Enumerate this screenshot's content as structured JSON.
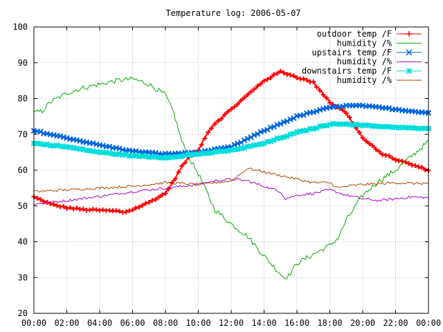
{
  "chart_data": {
    "type": "line",
    "title": "Temperature log: 2006-05-07",
    "xlabel": "",
    "ylabel": "",
    "xlim": [
      0,
      24
    ],
    "ylim": [
      20,
      100
    ],
    "grid": true,
    "legend_position": "top-right",
    "x_ticks": [
      {
        "value": 0,
        "label": "00:00"
      },
      {
        "value": 2,
        "label": "02:00"
      },
      {
        "value": 4,
        "label": "04:00"
      },
      {
        "value": 6,
        "label": "06:00"
      },
      {
        "value": 8,
        "label": "08:00"
      },
      {
        "value": 10,
        "label": "10:00"
      },
      {
        "value": 12,
        "label": "12:00"
      },
      {
        "value": 14,
        "label": "14:00"
      },
      {
        "value": 16,
        "label": "16:00"
      },
      {
        "value": 18,
        "label": "18:00"
      },
      {
        "value": 20,
        "label": "20:00"
      },
      {
        "value": 22,
        "label": "22:00"
      },
      {
        "value": 24,
        "label": "00:00"
      }
    ],
    "y_ticks": [
      {
        "value": 20,
        "label": "20"
      },
      {
        "value": 30,
        "label": "30"
      },
      {
        "value": 40,
        "label": "40"
      },
      {
        "value": 50,
        "label": "50"
      },
      {
        "value": 60,
        "label": "60"
      },
      {
        "value": 70,
        "label": "70"
      },
      {
        "value": 80,
        "label": "80"
      },
      {
        "value": 90,
        "label": "90"
      },
      {
        "value": 100,
        "label": "100"
      }
    ],
    "series": [
      {
        "name": "outdoor temp /F",
        "color": "#ff0000",
        "marker": "plus",
        "x": [
          0,
          1,
          2,
          3,
          4,
          5,
          5.5,
          6,
          7,
          8,
          8.5,
          9,
          9.5,
          10,
          10.5,
          11,
          12,
          13,
          14,
          15,
          15.5,
          16,
          17,
          18,
          19,
          20,
          21,
          22,
          23,
          24
        ],
        "y": [
          52.5,
          50.5,
          49.5,
          49,
          48.8,
          48.6,
          48.2,
          49,
          51,
          53.5,
          57,
          61,
          64,
          65.5,
          70,
          73,
          77,
          81,
          85,
          87.5,
          86.8,
          86,
          84.5,
          79,
          76,
          69,
          65,
          63,
          61.5,
          60
        ]
      },
      {
        "name": "humidity /%",
        "color": "#00aa00",
        "marker": "none",
        "x": [
          0,
          0.5,
          1,
          2,
          3,
          4,
          5,
          6,
          7,
          8,
          8.5,
          9,
          9.5,
          10,
          10.5,
          11,
          12,
          13,
          14,
          15,
          15.2,
          15.5,
          16,
          17,
          18,
          18.5,
          19,
          20,
          21,
          22,
          23,
          24
        ],
        "y": [
          76,
          76.5,
          79,
          81.5,
          83,
          84,
          85,
          85.5,
          84,
          81,
          76,
          68,
          63,
          59,
          54,
          49,
          45,
          41.5,
          36,
          31,
          30,
          30.5,
          34,
          36.5,
          39,
          41,
          46,
          53,
          57,
          60,
          64,
          68
        ]
      },
      {
        "name": "upstairs temp /F",
        "color": "#0066dd",
        "marker": "x",
        "x": [
          0,
          2,
          4,
          6,
          8,
          10,
          12,
          14,
          16,
          18,
          19,
          20,
          22,
          24
        ],
        "y": [
          71,
          69,
          67,
          65.3,
          64.5,
          65,
          66.5,
          71,
          75,
          77.5,
          78,
          78,
          77,
          76
        ]
      },
      {
        "name": "humidity /%",
        "color": "#aa00cc",
        "marker": "none",
        "x": [
          0,
          2,
          4,
          6,
          8,
          10,
          11,
          12,
          13,
          14,
          15,
          15.3,
          16,
          17,
          18,
          19,
          20,
          21,
          22,
          23,
          24
        ],
        "y": [
          50.5,
          51.5,
          52.7,
          54,
          55,
          56,
          57,
          57.5,
          57,
          55.5,
          54,
          52,
          53,
          53.5,
          54.5,
          53,
          52,
          51.5,
          52,
          52.5,
          52.3
        ]
      },
      {
        "name": "downstairs temp /F",
        "color": "#00dddd",
        "marker": "star",
        "x": [
          0,
          2,
          4,
          6,
          8,
          10,
          12,
          14,
          16,
          18,
          18.8,
          20,
          22,
          24
        ],
        "y": [
          67.5,
          66.5,
          65,
          64,
          63.5,
          64.5,
          65.5,
          67.5,
          70.5,
          72.8,
          73,
          72.5,
          72,
          71.5
        ]
      },
      {
        "name": "humidity /%",
        "color": "#aa4400",
        "marker": "none",
        "x": [
          0,
          2,
          4,
          6,
          8,
          10,
          12,
          13,
          14,
          15,
          16,
          17,
          18,
          18.5,
          19,
          20,
          21,
          22,
          23,
          24
        ],
        "y": [
          54,
          54.5,
          55,
          55.5,
          56.5,
          56,
          57,
          60.5,
          59.5,
          58.5,
          57.5,
          56.5,
          56.5,
          55,
          55.5,
          56,
          56.2,
          56.5,
          56.3,
          56.3
        ]
      }
    ]
  }
}
